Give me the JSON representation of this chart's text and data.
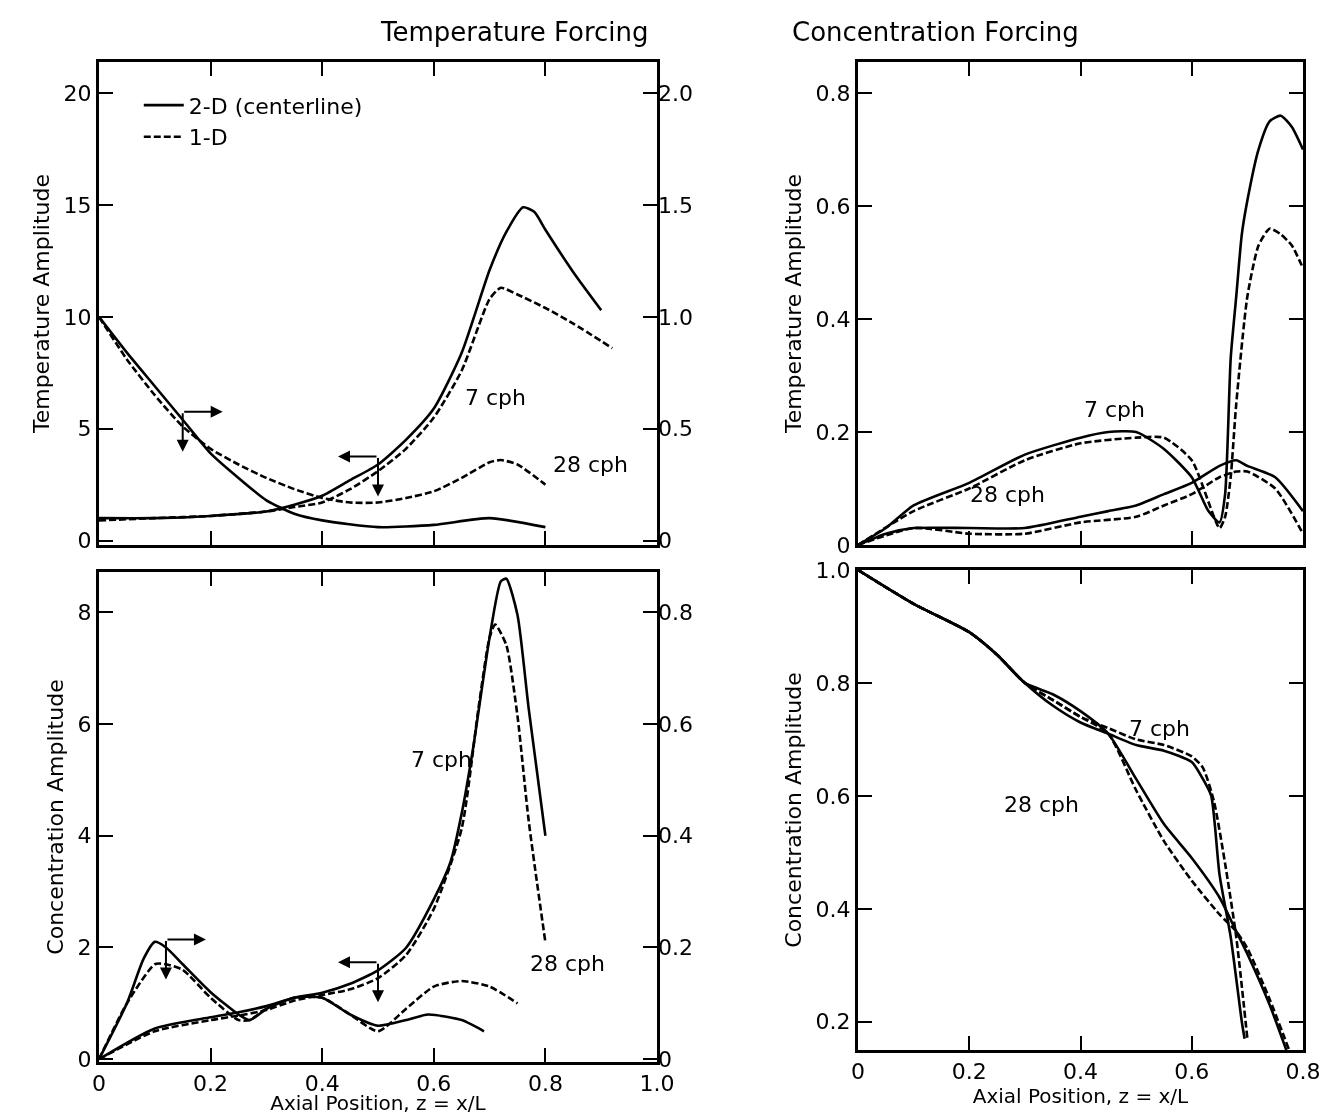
{
  "chart_data": [
    {
      "type": "line",
      "title": "Temperature Forcing",
      "ylabel": "Temperature Amplitude",
      "legend": "top left",
      "tick_labels": "y",
      "xlim": [
        0,
        1
      ],
      "xticks": [
        {
          "value": 0,
          "label": null
        },
        {
          "value": 0.2,
          "label": null
        },
        {
          "value": 0.4,
          "label": null
        },
        {
          "value": 0.6,
          "label": null
        },
        {
          "value": 0.8,
          "label": null
        },
        {
          "value": 1,
          "label": null
        }
      ],
      "ylim": [
        -0.2,
        21.4
      ],
      "yticks": [
        0,
        5,
        10,
        15,
        20
      ],
      "y2lim": [
        -0.02,
        2.14
      ],
      "y2ticks": [
        0,
        0.5,
        {
          "value": 1,
          "label": "1.0"
        },
        1.5,
        {
          "value": 2,
          "label": "2.0"
        }
      ],
      "annotations": [
        "7 cph",
        "28 cph"
      ],
      "series": [
        {
          "name": "2-D (centerline)",
          "color": "#000000",
          "line_style": "solid",
          "x": [
            0,
            0.1,
            0.2,
            0.3,
            0.35,
            0.4,
            0.45,
            0.5,
            0.55,
            0.6,
            0.65,
            0.7,
            0.73,
            0.76,
            0.78,
            0.8,
            0.85,
            0.9
          ],
          "values": [
            1.0,
            1.0,
            1.1,
            1.3,
            1.6,
            2.0,
            2.7,
            3.4,
            4.5,
            5.9,
            8.4,
            12.1,
            13.8,
            14.9,
            14.7,
            13.9,
            12.0,
            10.3
          ]
        },
        {
          "name": "1-D",
          "color": "#000000",
          "line_style": "dashed",
          "x": [
            0,
            0.1,
            0.2,
            0.3,
            0.35,
            0.4,
            0.45,
            0.5,
            0.55,
            0.6,
            0.65,
            0.7,
            0.72,
            0.75,
            0.8,
            0.85,
            0.92
          ],
          "values": [
            0.9,
            1.0,
            1.1,
            1.3,
            1.5,
            1.7,
            2.3,
            3.1,
            4.1,
            5.5,
            7.6,
            10.8,
            11.3,
            11.0,
            10.4,
            9.7,
            8.6
          ]
        },
        {
          "color": "#000000",
          "line_style": "solid",
          "axis": "y2",
          "x": [
            0,
            0.05,
            0.1,
            0.15,
            0.2,
            0.25,
            0.3,
            0.35,
            0.4,
            0.5,
            0.6,
            0.7,
            0.8
          ],
          "values": [
            1.0,
            0.84,
            0.69,
            0.54,
            0.39,
            0.28,
            0.18,
            0.12,
            0.09,
            0.06,
            0.07,
            0.1,
            0.06
          ]
        },
        {
          "color": "#000000",
          "line_style": "dashed",
          "axis": "y2",
          "x": [
            0,
            0.05,
            0.1,
            0.15,
            0.2,
            0.25,
            0.3,
            0.35,
            0.4,
            0.45,
            0.5,
            0.55,
            0.6,
            0.65,
            0.7,
            0.72,
            0.75,
            0.8
          ],
          "values": [
            1.0,
            0.81,
            0.65,
            0.51,
            0.41,
            0.34,
            0.28,
            0.23,
            0.19,
            0.17,
            0.17,
            0.19,
            0.22,
            0.28,
            0.35,
            0.36,
            0.34,
            0.25
          ]
        }
      ]
    },
    {
      "type": "line",
      "title": "Concentration Forcing",
      "ylabel": "Temperature Amplitude",
      "tick_labels": "y",
      "xlim": [
        0,
        0.8
      ],
      "xticks": [
        {
          "value": 0,
          "label": null
        },
        {
          "value": 0.2,
          "label": null
        },
        {
          "value": 0.4,
          "label": null
        },
        {
          "value": 0.6,
          "label": null
        },
        {
          "value": 0.8,
          "label": null
        }
      ],
      "ylim": [
        0,
        0.855
      ],
      "yticks": [
        0,
        0.2,
        0.4,
        0.6,
        0.8
      ],
      "annotations": [
        "7 cph",
        "28 cph"
      ],
      "series": [
        {
          "color": "#000000",
          "line_style": "solid",
          "x": [
            0,
            0.05,
            0.1,
            0.2,
            0.3,
            0.4,
            0.45,
            0.5,
            0.55,
            0.6,
            0.63,
            0.65,
            0.66,
            0.67,
            0.68,
            0.69,
            0.7,
            0.72,
            0.74,
            0.76,
            0.78,
            0.8
          ],
          "values": [
            0,
            0.03,
            0.07,
            0.11,
            0.16,
            0.19,
            0.2,
            0.2,
            0.17,
            0.12,
            0.06,
            0.04,
            0.09,
            0.33,
            0.44,
            0.55,
            0.61,
            0.7,
            0.75,
            0.76,
            0.74,
            0.7
          ]
        },
        {
          "color": "#000000",
          "line_style": "dashed",
          "x": [
            0,
            0.1,
            0.2,
            0.3,
            0.4,
            0.5,
            0.55,
            0.6,
            0.65,
            0.66,
            0.67,
            0.68,
            0.7,
            0.72,
            0.74,
            0.76,
            0.78,
            0.8
          ],
          "values": [
            0,
            0.06,
            0.1,
            0.15,
            0.18,
            0.19,
            0.19,
            0.15,
            0.03,
            0.05,
            0.12,
            0.25,
            0.44,
            0.53,
            0.56,
            0.55,
            0.53,
            0.49
          ]
        },
        {
          "color": "#000000",
          "line_style": "solid",
          "x": [
            0,
            0.05,
            0.1,
            0.2,
            0.3,
            0.4,
            0.45,
            0.5,
            0.55,
            0.6,
            0.65,
            0.68,
            0.7,
            0.75,
            0.8
          ],
          "values": [
            0,
            0.02,
            0.03,
            0.03,
            0.03,
            0.05,
            0.06,
            0.07,
            0.09,
            0.11,
            0.14,
            0.15,
            0.14,
            0.12,
            0.06
          ]
        },
        {
          "color": "#000000",
          "line_style": "dashed",
          "x": [
            0,
            0.1,
            0.2,
            0.3,
            0.4,
            0.5,
            0.55,
            0.6,
            0.65,
            0.68,
            0.7,
            0.75,
            0.8
          ],
          "values": [
            0,
            0.03,
            0.02,
            0.02,
            0.04,
            0.05,
            0.07,
            0.09,
            0.12,
            0.13,
            0.13,
            0.1,
            0.02
          ]
        }
      ]
    },
    {
      "type": "line",
      "xlabel": "Axial Position, z = x/L",
      "ylabel": "Concentration Amplitude",
      "xlim": [
        0,
        1
      ],
      "xticks": [
        0,
        0.2,
        0.4,
        0.6,
        0.8,
        {
          "value": 1,
          "label": "1.0"
        }
      ],
      "ylim": [
        -0.05,
        8.72
      ],
      "yticks": [
        0,
        2,
        4,
        6,
        8
      ],
      "y2lim": [
        -0.005,
        0.872
      ],
      "y2ticks": [
        0,
        0.2,
        0.4,
        0.6,
        0.8
      ],
      "annotations": [
        "7 cph",
        "28 cph"
      ],
      "series": [
        {
          "color": "#000000",
          "line_style": "solid",
          "x": [
            0,
            0.1,
            0.2,
            0.25,
            0.3,
            0.35,
            0.4,
            0.45,
            0.5,
            0.55,
            0.6,
            0.63,
            0.65,
            0.67,
            0.7,
            0.72,
            0.73,
            0.75,
            0.77,
            0.8
          ],
          "values": [
            0,
            0.55,
            0.75,
            0.84,
            0.95,
            1.1,
            1.19,
            1.35,
            1.59,
            1.99,
            2.86,
            3.53,
            4.4,
            5.54,
            7.55,
            8.55,
            8.6,
            7.95,
            6.28,
            4.0
          ]
        },
        {
          "color": "#000000",
          "line_style": "dashed",
          "x": [
            0,
            0.1,
            0.2,
            0.25,
            0.3,
            0.35,
            0.4,
            0.45,
            0.5,
            0.55,
            0.6,
            0.65,
            0.68,
            0.7,
            0.71,
            0.73,
            0.75,
            0.77,
            0.8
          ],
          "values": [
            0,
            0.5,
            0.7,
            0.78,
            0.88,
            1.05,
            1.15,
            1.25,
            1.45,
            1.86,
            2.69,
            4.13,
            6.28,
            7.55,
            7.78,
            7.41,
            6.14,
            4.27,
            2.09
          ]
        },
        {
          "color": "#000000",
          "line_style": "solid",
          "axis": "y2",
          "x": [
            0,
            0.05,
            0.08,
            0.1,
            0.12,
            0.15,
            0.2,
            0.25,
            0.27,
            0.3,
            0.35,
            0.4,
            0.45,
            0.5,
            0.55,
            0.59,
            0.65,
            0.69
          ],
          "values": [
            0,
            0.1,
            0.18,
            0.21,
            0.2,
            0.17,
            0.12,
            0.08,
            0.07,
            0.09,
            0.11,
            0.11,
            0.08,
            0.06,
            0.07,
            0.08,
            0.07,
            0.05
          ]
        },
        {
          "color": "#000000",
          "line_style": "dashed",
          "axis": "y2",
          "x": [
            0,
            0.05,
            0.1,
            0.12,
            0.15,
            0.2,
            0.25,
            0.27,
            0.3,
            0.35,
            0.4,
            0.45,
            0.5,
            0.55,
            0.6,
            0.65,
            0.7,
            0.75
          ],
          "values": [
            0,
            0.1,
            0.17,
            0.17,
            0.16,
            0.11,
            0.07,
            0.07,
            0.09,
            0.11,
            0.11,
            0.08,
            0.05,
            0.09,
            0.13,
            0.14,
            0.13,
            0.1
          ]
        }
      ]
    },
    {
      "type": "line",
      "xlabel": "Axial Position, z = x/L",
      "ylabel": "Concentration Amplitude",
      "xlim": [
        0,
        0.8
      ],
      "xticks": [
        0,
        0.2,
        0.4,
        0.6,
        0.8
      ],
      "ylim": [
        0.15,
        1.0
      ],
      "yticks": [
        0.2,
        0.4,
        0.6,
        0.8,
        {
          "value": 1,
          "label": "1.0"
        }
      ],
      "annotations": [
        "7 cph",
        "28 cph"
      ],
      "series": [
        {
          "color": "#000000",
          "line_style": "solid",
          "x": [
            0,
            0.1,
            0.2,
            0.25,
            0.3,
            0.35,
            0.4,
            0.45,
            0.5,
            0.55,
            0.6,
            0.62,
            0.635,
            0.65,
            0.67,
            0.69,
            0.695
          ],
          "values": [
            1.0,
            0.94,
            0.89,
            0.85,
            0.8,
            0.76,
            0.73,
            0.71,
            0.69,
            0.68,
            0.66,
            0.63,
            0.6,
            0.46,
            0.35,
            0.2,
            0.17
          ]
        },
        {
          "color": "#000000",
          "line_style": "dashed",
          "x": [
            0,
            0.1,
            0.2,
            0.25,
            0.3,
            0.35,
            0.4,
            0.45,
            0.5,
            0.55,
            0.6,
            0.62,
            0.64,
            0.66,
            0.68,
            0.7
          ],
          "values": [
            1.0,
            0.94,
            0.89,
            0.85,
            0.8,
            0.77,
            0.74,
            0.72,
            0.7,
            0.69,
            0.67,
            0.65,
            0.59,
            0.48,
            0.35,
            0.17
          ]
        },
        {
          "color": "#000000",
          "line_style": "solid",
          "x": [
            0,
            0.1,
            0.2,
            0.25,
            0.3,
            0.35,
            0.4,
            0.45,
            0.5,
            0.55,
            0.6,
            0.65,
            0.68,
            0.7,
            0.74,
            0.77
          ],
          "values": [
            1.0,
            0.94,
            0.89,
            0.85,
            0.8,
            0.78,
            0.75,
            0.71,
            0.63,
            0.55,
            0.49,
            0.42,
            0.36,
            0.32,
            0.23,
            0.15
          ]
        },
        {
          "color": "#000000",
          "line_style": "dashed",
          "x": [
            0,
            0.1,
            0.2,
            0.25,
            0.3,
            0.35,
            0.4,
            0.45,
            0.5,
            0.55,
            0.6,
            0.65,
            0.68,
            0.7,
            0.74,
            0.775
          ],
          "values": [
            1.0,
            0.94,
            0.89,
            0.85,
            0.8,
            0.77,
            0.74,
            0.71,
            0.61,
            0.52,
            0.45,
            0.39,
            0.36,
            0.33,
            0.24,
            0.15
          ]
        }
      ]
    }
  ]
}
